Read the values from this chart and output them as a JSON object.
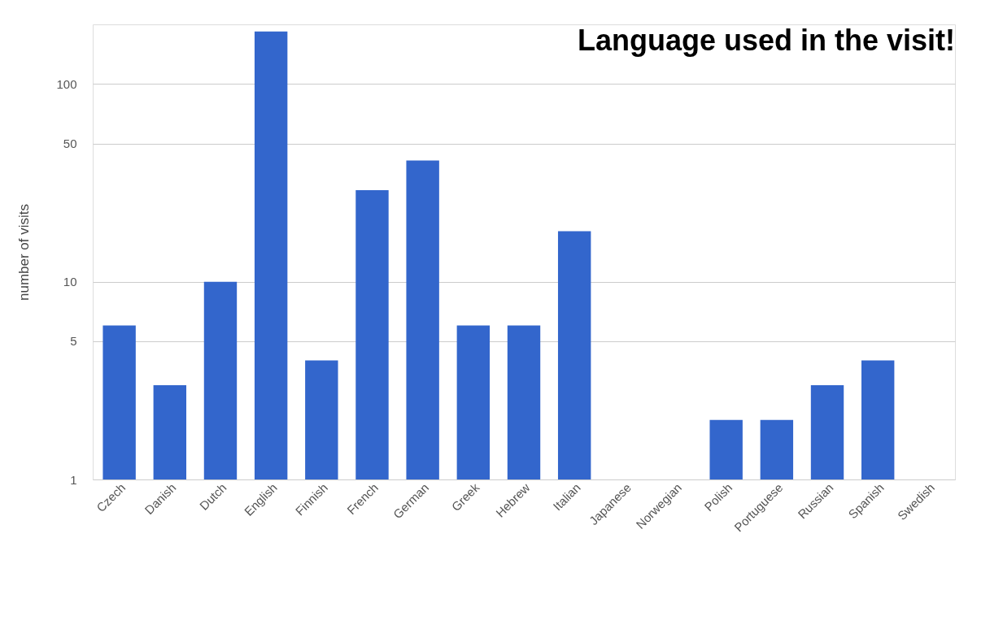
{
  "chart_data": {
    "type": "bar",
    "title": "Language used in the visit!",
    "ylabel": "number of visits",
    "categories": [
      "Czech",
      "Danish",
      "Dutch",
      "English",
      "Finnish",
      "French",
      "German",
      "Greek",
      "Hebrew",
      "Italian",
      "Japanese",
      "Norwegian",
      "Polish",
      "Portuguese",
      "Russian",
      "Spanish",
      "Swedish"
    ],
    "values": [
      6,
      3,
      10,
      184,
      4,
      29,
      41,
      6,
      6,
      18,
      null,
      null,
      2,
      2,
      3,
      4,
      null
    ],
    "color": "#3366cc",
    "log": "y",
    "ylim": [
      1,
      200
    ],
    "yticks": [
      1,
      5,
      10,
      50,
      100
    ],
    "grid": "y"
  }
}
